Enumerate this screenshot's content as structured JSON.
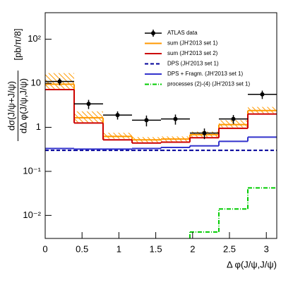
{
  "chart_data": {
    "type": "step-histogram",
    "x_label": "Δ φ(J/ψ,J/ψ)",
    "y_label_numerator": "dσ(J/ψ+J/ψ)",
    "y_label_denominator": "dΔ φ(J/ψ,J/ψ)",
    "y_label_unit": "[pb/π/8]",
    "log_y": true,
    "xlim": [
      0,
      3.1416
    ],
    "ylim": [
      0.003,
      400
    ],
    "xticks": [
      0,
      0.5,
      1,
      1.5,
      2,
      2.5,
      3
    ],
    "yticks": [
      {
        "value": 0.01,
        "label": "10⁻²"
      },
      {
        "value": 0.1,
        "label": "10⁻¹"
      },
      1,
      10,
      {
        "value": 100,
        "label": "10²"
      }
    ],
    "bins": [
      0,
      0.393,
      0.785,
      1.178,
      1.571,
      1.963,
      2.356,
      2.749,
      3.1416
    ],
    "data": {
      "name": "ATLAS data",
      "color": "#000000",
      "x": [
        0.196,
        0.589,
        0.982,
        1.374,
        1.767,
        2.16,
        2.553,
        2.945
      ],
      "y": [
        11,
        3.4,
        1.9,
        1.45,
        1.55,
        0.74,
        1.55,
        5.6
      ],
      "err": [
        2,
        0.8,
        0.4,
        0.4,
        0.4,
        0.2,
        0.35,
        1.2
      ]
    },
    "band": {
      "color": "#ff9900",
      "low": [
        7.5,
        1.3,
        0.55,
        0.46,
        0.48,
        0.6,
        1.0,
        2.1
      ],
      "high": [
        17,
        2.3,
        0.75,
        0.6,
        0.62,
        0.8,
        1.45,
        2.9
      ]
    },
    "series": [
      {
        "name": "sum (JH'2013 set 1)",
        "color": "#ff9900",
        "dash": "solid",
        "values": [
          9.5,
          1.65,
          0.62,
          0.52,
          0.54,
          0.68,
          1.15,
          2.4
        ]
      },
      {
        "name": "sum (JH'2013 set 2)",
        "color": "#cc0000",
        "dash": "solid",
        "values": [
          7.2,
          1.25,
          0.52,
          0.44,
          0.46,
          0.58,
          0.95,
          2.0
        ]
      },
      {
        "name": "DPS (JH'2013 set 1)",
        "color": "#000099",
        "dash": "dashed",
        "values": [
          0.3,
          0.3,
          0.3,
          0.3,
          0.3,
          0.3,
          0.3,
          0.3
        ]
      },
      {
        "name": "DPS + Fragm. (JH'2013 set 1)",
        "color": "#3333cc",
        "dash": "solid",
        "values": [
          0.33,
          0.32,
          0.32,
          0.33,
          0.35,
          0.38,
          0.48,
          0.6
        ]
      },
      {
        "name": "processes (2)-(4) (JH'2013 set 1)",
        "color": "#00cc00",
        "dash": "dashdot",
        "values": [
          null,
          null,
          null,
          null,
          null,
          0.0042,
          0.014,
          0.042
        ]
      }
    ]
  }
}
